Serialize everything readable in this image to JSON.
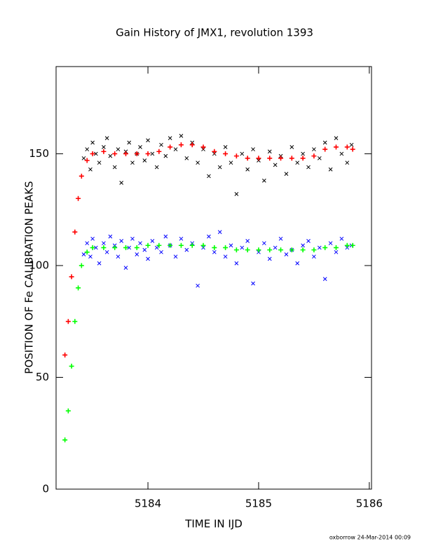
{
  "chart_data": {
    "type": "scatter",
    "title": "Gain History of JMX1, revolution 1393",
    "x_label": "TIME IN IJD",
    "y_label": "POSITION OF Fe CALIBRATION PEAKS",
    "footer": "oxborrow 24-Mar-2014 00:09",
    "xlim": [
      5183.17,
      5186.02
    ],
    "ylim": [
      0,
      189
    ],
    "xticks": [
      5184,
      5185,
      5186
    ],
    "yticks": [
      0,
      50,
      100,
      150
    ],
    "series": [
      {
        "color": "#000000",
        "marker": "x",
        "x": [
          5183.42,
          5183.45,
          5183.48,
          5183.5,
          5183.53,
          5183.56,
          5183.6,
          5183.63,
          5183.66,
          5183.7,
          5183.73,
          5183.76,
          5183.8,
          5183.83,
          5183.86,
          5183.9,
          5183.93,
          5183.97,
          5184.0,
          5184.04,
          5184.08,
          5184.12,
          5184.16,
          5184.2,
          5184.25,
          5184.3,
          5184.35,
          5184.4,
          5184.45,
          5184.5,
          5184.55,
          5184.6,
          5184.65,
          5184.7,
          5184.75,
          5184.8,
          5184.85,
          5184.9,
          5184.95,
          5185.0,
          5185.05,
          5185.1,
          5185.15,
          5185.2,
          5185.25,
          5185.3,
          5185.35,
          5185.4,
          5185.45,
          5185.5,
          5185.55,
          5185.6,
          5185.65,
          5185.7,
          5185.75,
          5185.8,
          5185.84
        ],
        "values": [
          148,
          152,
          143,
          155,
          150,
          146,
          153,
          157,
          149,
          144,
          152,
          137,
          151,
          155,
          146,
          150,
          153,
          147,
          156,
          150,
          144,
          154,
          149,
          157,
          152,
          158,
          148,
          155,
          146,
          152,
          140,
          150,
          144,
          153,
          146,
          132,
          150,
          143,
          152,
          147,
          138,
          151,
          145,
          149,
          141,
          153,
          146,
          150,
          144,
          152,
          148,
          155,
          143,
          157,
          150,
          146,
          154
        ]
      },
      {
        "color": "#0000ff",
        "marker": "x",
        "x": [
          5183.42,
          5183.45,
          5183.48,
          5183.5,
          5183.53,
          5183.56,
          5183.6,
          5183.63,
          5183.66,
          5183.7,
          5183.73,
          5183.76,
          5183.8,
          5183.83,
          5183.86,
          5183.9,
          5183.93,
          5183.97,
          5184.0,
          5184.04,
          5184.08,
          5184.12,
          5184.16,
          5184.2,
          5184.25,
          5184.3,
          5184.35,
          5184.4,
          5184.45,
          5184.5,
          5184.55,
          5184.6,
          5184.65,
          5184.7,
          5184.75,
          5184.8,
          5184.85,
          5184.9,
          5184.95,
          5185.0,
          5185.05,
          5185.1,
          5185.15,
          5185.2,
          5185.25,
          5185.3,
          5185.35,
          5185.4,
          5185.45,
          5185.5,
          5185.55,
          5185.6,
          5185.65,
          5185.7,
          5185.75,
          5185.8,
          5185.84
        ],
        "values": [
          105,
          110,
          104,
          112,
          108,
          101,
          110,
          106,
          113,
          109,
          104,
          111,
          99,
          108,
          112,
          105,
          110,
          107,
          103,
          111,
          108,
          106,
          113,
          109,
          104,
          112,
          107,
          110,
          91,
          108,
          113,
          106,
          115,
          104,
          109,
          101,
          108,
          111,
          92,
          106,
          110,
          103,
          108,
          112,
          105,
          107,
          101,
          109,
          111,
          104,
          108,
          94,
          110,
          106,
          112,
          108,
          109
        ]
      },
      {
        "color": "#ff0000",
        "marker": "+",
        "x": [
          5183.25,
          5183.28,
          5183.31,
          5183.34,
          5183.37,
          5183.4,
          5183.45,
          5183.5,
          5183.6,
          5183.7,
          5183.8,
          5183.9,
          5184.0,
          5184.1,
          5184.2,
          5184.3,
          5184.4,
          5184.5,
          5184.6,
          5184.7,
          5184.8,
          5184.9,
          5185.0,
          5185.1,
          5185.2,
          5185.3,
          5185.4,
          5185.5,
          5185.6,
          5185.7,
          5185.8,
          5185.85
        ],
        "values": [
          60,
          75,
          95,
          115,
          130,
          140,
          147,
          150,
          151,
          150,
          150,
          150,
          150,
          151,
          153,
          154,
          154,
          153,
          151,
          150,
          149,
          148,
          148,
          148,
          148,
          148,
          148,
          149,
          152,
          153,
          153,
          152
        ]
      },
      {
        "color": "#00ff00",
        "marker": "+",
        "x": [
          5183.25,
          5183.28,
          5183.31,
          5183.34,
          5183.37,
          5183.4,
          5183.45,
          5183.5,
          5183.6,
          5183.7,
          5183.8,
          5183.9,
          5184.0,
          5184.1,
          5184.2,
          5184.3,
          5184.4,
          5184.5,
          5184.6,
          5184.7,
          5184.8,
          5184.9,
          5185.0,
          5185.1,
          5185.2,
          5185.3,
          5185.4,
          5185.5,
          5185.6,
          5185.7,
          5185.8,
          5185.85
        ],
        "values": [
          22,
          35,
          55,
          75,
          90,
          100,
          106,
          108,
          108,
          108,
          108,
          108,
          109,
          109,
          109,
          109,
          109,
          109,
          108,
          108,
          107,
          107,
          107,
          107,
          107,
          107,
          107,
          107,
          108,
          108,
          109,
          109
        ]
      }
    ]
  }
}
